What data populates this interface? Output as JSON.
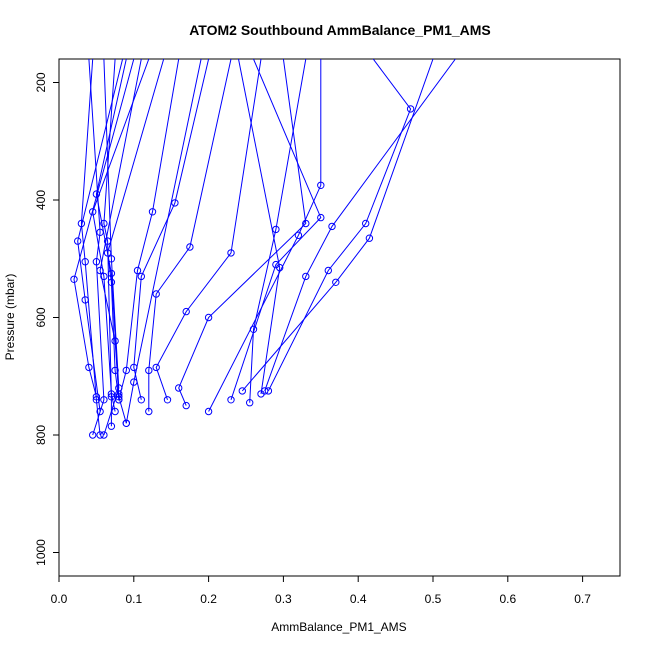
{
  "chart_data": {
    "type": "line",
    "title": "ATOM2 Southbound AmmBalance_PM1_AMS",
    "xlabel": "AmmBalance_PM1_AMS",
    "ylabel": "Pressure (mbar)",
    "xlim": [
      0,
      0.75
    ],
    "ylim": [
      1040,
      160
    ],
    "x_reversed": false,
    "y_reversed": true,
    "xticks": [
      0.0,
      0.1,
      0.2,
      0.3,
      0.4,
      0.5,
      0.6,
      0.7
    ],
    "xtick_labels": [
      "0.0",
      "0.1",
      "0.2",
      "0.3",
      "0.4",
      "0.5",
      "0.6",
      "0.7"
    ],
    "yticks": [
      200,
      400,
      600,
      800,
      1000
    ],
    "ytick_labels": [
      "200",
      "400",
      "600",
      "800",
      "1000"
    ],
    "grid": false,
    "legend": "none",
    "color": "#0000ff",
    "marker": "open-circle",
    "series": [
      {
        "values": [
          [
            0.04,
            160
          ],
          [
            0.055,
            455
          ],
          [
            0.05,
            505
          ],
          [
            0.06,
            740
          ],
          [
            0.045,
            800
          ]
        ]
      },
      {
        "values": [
          [
            0.06,
            160
          ],
          [
            0.07,
            500
          ],
          [
            0.08,
            720
          ],
          [
            0.06,
            800
          ]
        ]
      },
      {
        "values": [
          [
            0.045,
            160
          ],
          [
            0.03,
            440
          ],
          [
            0.035,
            505
          ],
          [
            0.05,
            740
          ],
          [
            0.055,
            800
          ]
        ]
      },
      {
        "values": [
          [
            0.075,
            160
          ],
          [
            0.06,
            440
          ],
          [
            0.065,
            470
          ],
          [
            0.07,
            735
          ],
          [
            0.07,
            785
          ]
        ]
      },
      {
        "values": [
          [
            0.09,
            160
          ],
          [
            0.05,
            390
          ],
          [
            0.07,
            525
          ],
          [
            0.08,
            735
          ],
          [
            0.09,
            780
          ]
        ]
      },
      {
        "values": [
          [
            0.12,
            160
          ],
          [
            0.045,
            420
          ],
          [
            0.06,
            530
          ],
          [
            0.07,
            730
          ],
          [
            0.075,
            760
          ]
        ]
      },
      {
        "values": [
          [
            0.14,
            160
          ],
          [
            0.065,
            490
          ],
          [
            0.07,
            540
          ],
          [
            0.075,
            690
          ],
          [
            0.08,
            740
          ]
        ]
      },
      {
        "values": [
          [
            0.16,
            160
          ],
          [
            0.125,
            420
          ],
          [
            0.105,
            520
          ],
          [
            0.09,
            690
          ],
          [
            0.08,
            740
          ]
        ]
      },
      {
        "values": [
          [
            0.2,
            160
          ],
          [
            0.155,
            405
          ],
          [
            0.11,
            530
          ],
          [
            0.1,
            685
          ],
          [
            0.11,
            740
          ]
        ]
      },
      {
        "values": [
          [
            0.23,
            160
          ],
          [
            0.175,
            480
          ],
          [
            0.13,
            560
          ],
          [
            0.12,
            690
          ],
          [
            0.12,
            760
          ]
        ]
      },
      {
        "values": [
          [
            0.27,
            160
          ],
          [
            0.23,
            490
          ],
          [
            0.17,
            590
          ],
          [
            0.13,
            685
          ],
          [
            0.145,
            740
          ]
        ]
      },
      {
        "values": [
          [
            0.3,
            160
          ],
          [
            0.33,
            440
          ],
          [
            0.2,
            600
          ],
          [
            0.16,
            720
          ],
          [
            0.17,
            750
          ]
        ]
      },
      {
        "values": [
          [
            0.35,
            160
          ],
          [
            0.35,
            375
          ],
          [
            0.32,
            460
          ],
          [
            0.2,
            760
          ]
        ]
      },
      {
        "values": [
          [
            0.33,
            160
          ],
          [
            0.29,
            450
          ],
          [
            0.26,
            620
          ],
          [
            0.255,
            745
          ]
        ]
      },
      {
        "values": [
          [
            0.42,
            160
          ],
          [
            0.47,
            245
          ],
          [
            0.41,
            440
          ],
          [
            0.36,
            520
          ],
          [
            0.28,
            725
          ]
        ]
      },
      {
        "values": [
          [
            0.5,
            160
          ],
          [
            0.415,
            465
          ],
          [
            0.37,
            540
          ],
          [
            0.245,
            725
          ]
        ]
      },
      {
        "values": [
          [
            0.53,
            160
          ],
          [
            0.365,
            445
          ],
          [
            0.33,
            530
          ],
          [
            0.275,
            725
          ]
        ]
      },
      {
        "values": [
          [
            0.24,
            160
          ],
          [
            0.295,
            515
          ],
          [
            0.27,
            730
          ]
        ]
      },
      {
        "values": [
          [
            0.19,
            160
          ],
          [
            0.1,
            710
          ],
          [
            0.09,
            780
          ]
        ]
      },
      {
        "values": [
          [
            0.1,
            160
          ],
          [
            0.02,
            535
          ],
          [
            0.04,
            685
          ],
          [
            0.05,
            735
          ]
        ]
      },
      {
        "values": [
          [
            0.085,
            160
          ],
          [
            0.025,
            470
          ],
          [
            0.035,
            570
          ],
          [
            0.055,
            760
          ]
        ]
      },
      {
        "values": [
          [
            0.11,
            160
          ],
          [
            0.055,
            520
          ],
          [
            0.075,
            640
          ],
          [
            0.08,
            730
          ]
        ]
      },
      {
        "values": [
          [
            0.26,
            160
          ],
          [
            0.35,
            430
          ],
          [
            0.29,
            510
          ],
          [
            0.23,
            740
          ]
        ]
      }
    ]
  }
}
